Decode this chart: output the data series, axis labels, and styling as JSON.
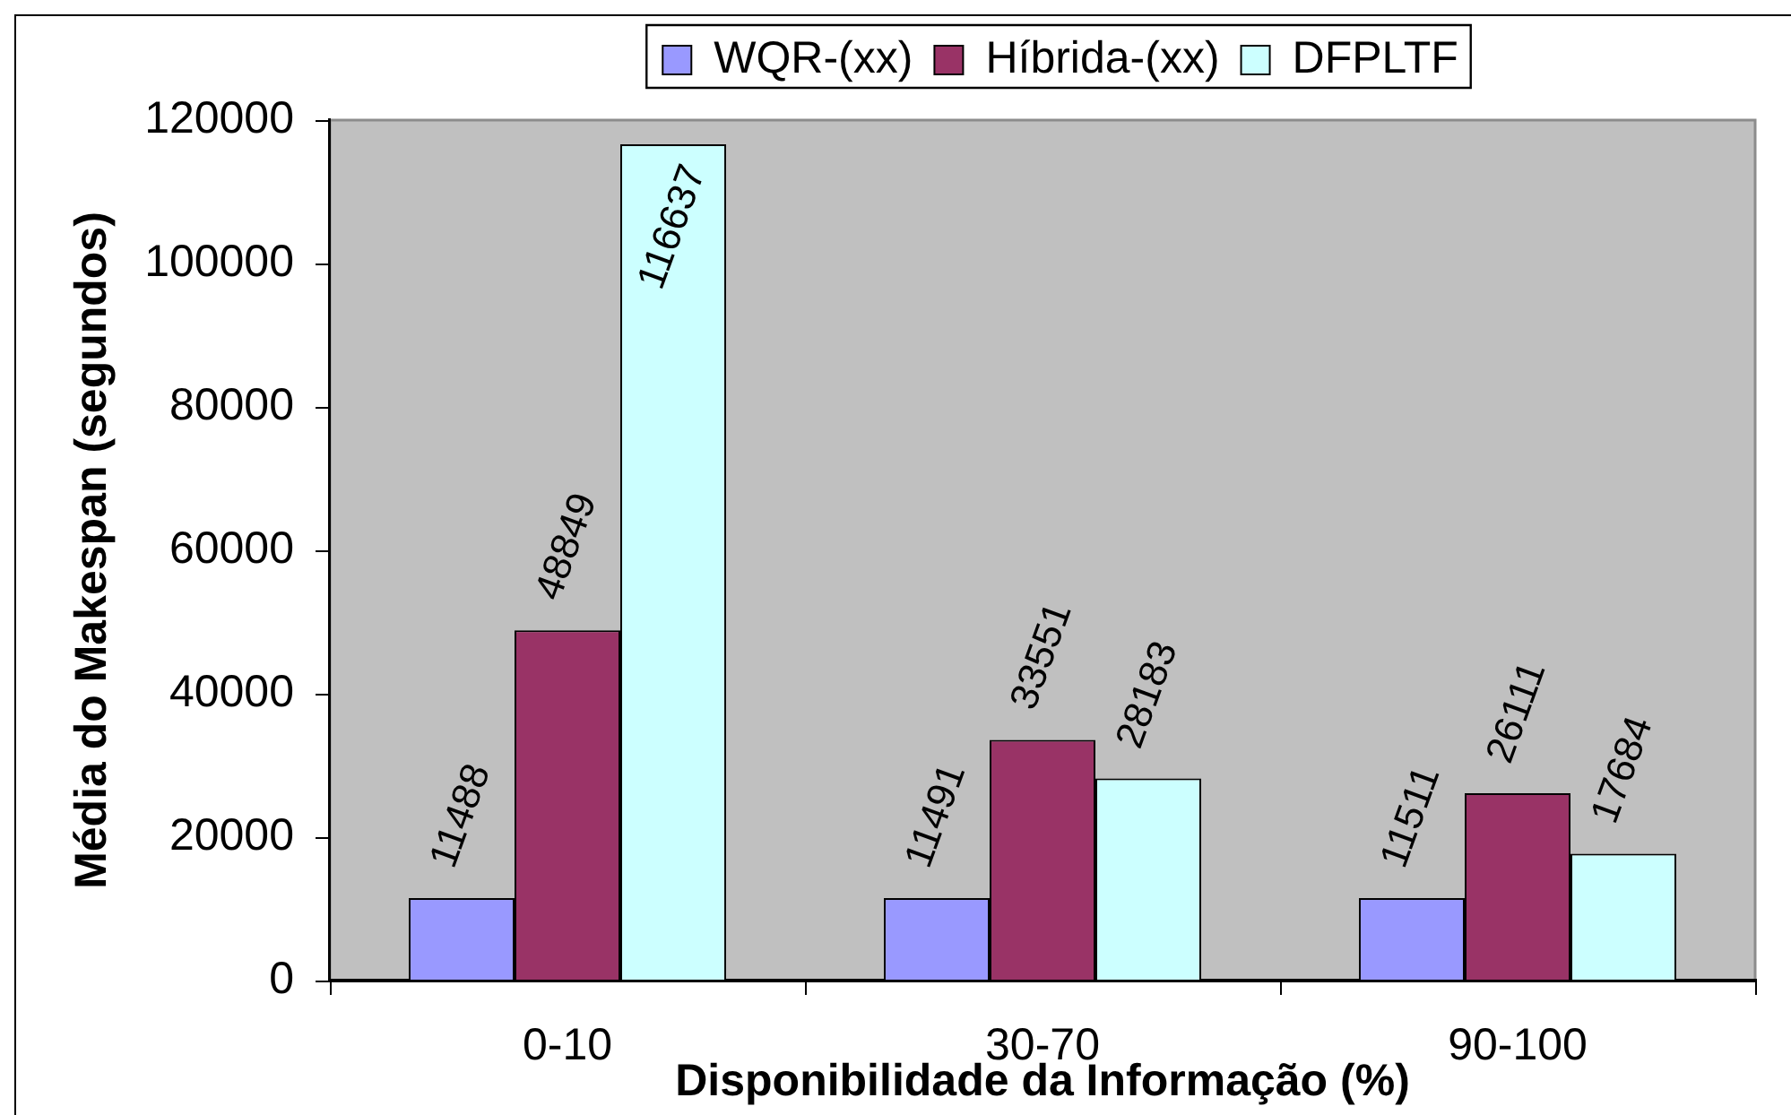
{
  "chart_data": {
    "type": "bar",
    "xlabel": "Disponibilidade da Informação (%)",
    "ylabel": "Média do Makespan (segundos)",
    "categories": [
      "0-10",
      "30-70",
      "90-100"
    ],
    "series": [
      {
        "name": "WQR-(xx)",
        "color": "#9999ff",
        "values": [
          11488,
          11491,
          11511
        ]
      },
      {
        "name": "Híbrida-(xx)",
        "color": "#993366",
        "values": [
          48849,
          33551,
          26111
        ]
      },
      {
        "name": "DFPLTF",
        "color": "#ccffff",
        "values": [
          116637,
          28183,
          17684
        ]
      }
    ],
    "ylim": [
      0,
      120000
    ],
    "yticks": [
      0,
      20000,
      40000,
      60000,
      80000,
      100000,
      120000
    ],
    "grid": false,
    "legend": "top",
    "data_labels": true
  }
}
